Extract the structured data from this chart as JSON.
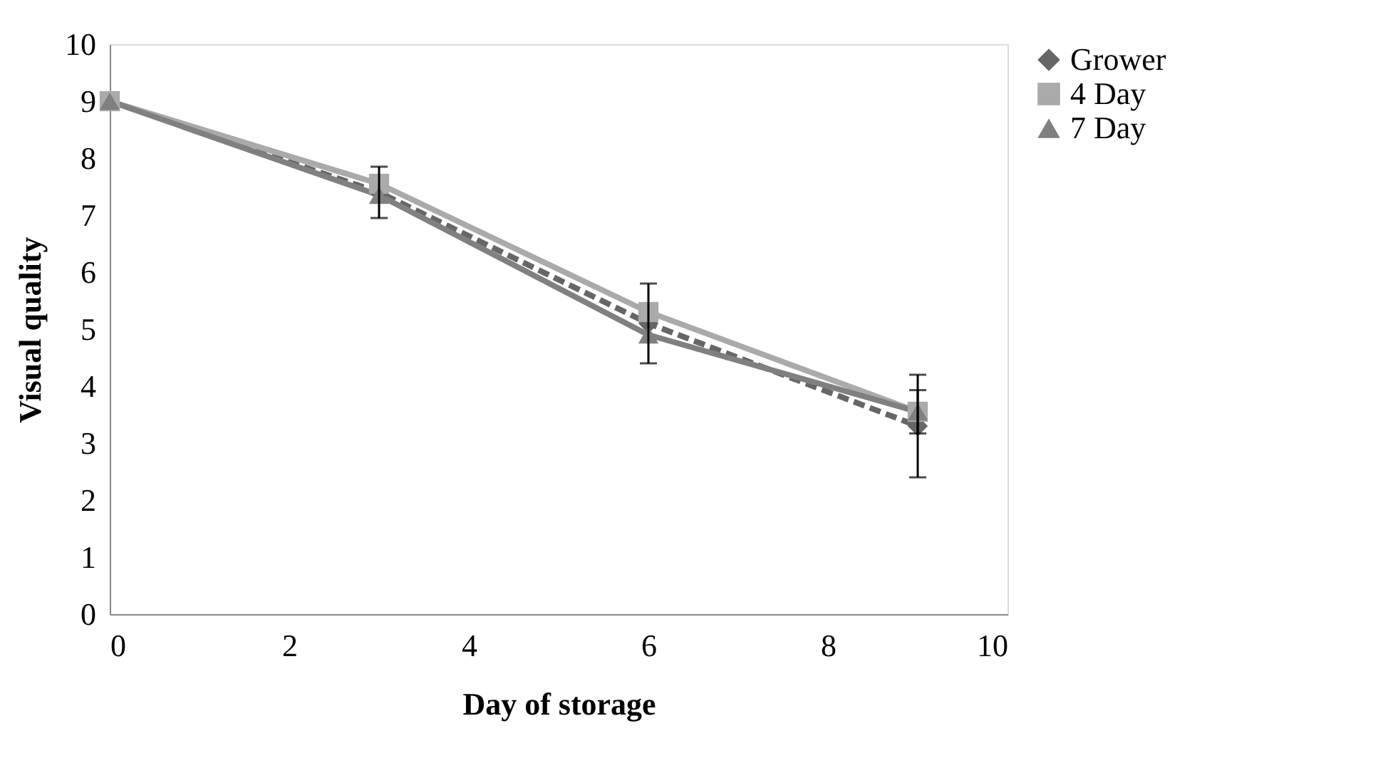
{
  "chart_data": {
    "type": "line",
    "xlabel": "Day of storage",
    "ylabel": "Visual quality",
    "x": [
      0,
      3,
      6,
      9
    ],
    "xlim": [
      0,
      10
    ],
    "xticks": [
      0,
      2,
      4,
      6,
      8,
      10
    ],
    "ylim": [
      0,
      10
    ],
    "yticks": [
      0,
      1,
      2,
      3,
      4,
      5,
      6,
      7,
      8,
      9,
      10
    ],
    "grid": false,
    "legend": "right",
    "series": [
      {
        "name": "Grower",
        "color": "#666666",
        "marker": "diamond",
        "line_style": "dashed",
        "values": [
          9,
          7.4,
          5.1,
          3.3
        ],
        "errors": [
          null,
          0.45,
          0.7,
          0.9
        ]
      },
      {
        "name": "4 Day",
        "color": "#aaaaaa",
        "marker": "square",
        "line_style": "solid",
        "values": [
          9,
          7.55,
          5.3,
          3.55
        ],
        "errors": [
          null,
          null,
          null,
          0.38
        ]
      },
      {
        "name": "7 Day",
        "color": "#808080",
        "marker": "triangle",
        "line_style": "solid",
        "values": [
          9,
          7.35,
          4.9,
          3.55
        ]
      }
    ]
  }
}
